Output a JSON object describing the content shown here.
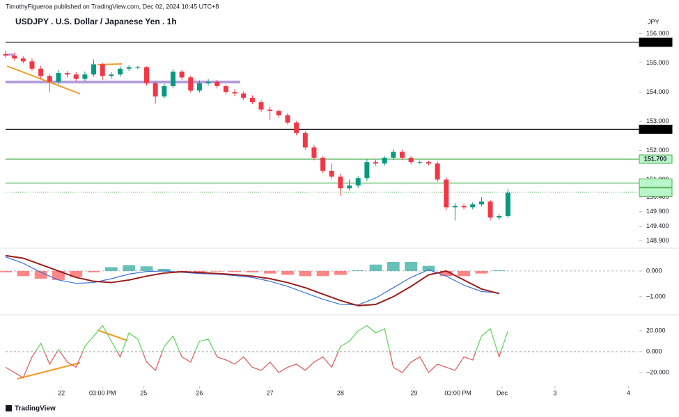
{
  "header": {
    "publisher": "TimothyFigueroa published on TradingView.com, Dec 02, 2024 10:45 UTC+8",
    "symbol_title": "USDJPY . U.S. Dollar / Japanese Yen . 1h",
    "currency": "JPY",
    "brand": "TradingView"
  },
  "chart_data": [
    {
      "type": "candlestick",
      "up_color": "#089981",
      "down_color": "#f23645",
      "xlim": [
        0,
        215
      ],
      "xticks": [
        {
          "value": 19,
          "label": "22"
        },
        {
          "value": 33,
          "label": "03:00 PM"
        },
        {
          "value": 47,
          "label": "25"
        },
        {
          "value": 66,
          "label": "26"
        },
        {
          "value": 90,
          "label": "27"
        },
        {
          "value": 114,
          "label": "28"
        },
        {
          "value": 139,
          "label": "29"
        },
        {
          "value": 154,
          "label": "03:00 PM"
        },
        {
          "value": 169,
          "label": "Dec"
        },
        {
          "value": 187,
          "label": "3"
        },
        {
          "value": 212,
          "label": "4"
        }
      ],
      "ylim": [
        148.7,
        156.2
      ],
      "yticks": [
        {
          "value": 156,
          "label": "156.000"
        },
        {
          "value": 155,
          "label": "155.000"
        },
        {
          "value": 154,
          "label": "154.000"
        },
        {
          "value": 153,
          "label": "153.000"
        },
        {
          "value": 152,
          "label": "152.000"
        },
        {
          "value": 151,
          "label": "151.000"
        },
        {
          "value": 150.4,
          "label": "150.400"
        },
        {
          "value": 149.9,
          "label": "149.900"
        },
        {
          "value": 149.4,
          "label": "149.400"
        },
        {
          "value": 148.9,
          "label": "148.900"
        }
      ],
      "levels": [
        {
          "value": 155.704,
          "color": "#000000",
          "fill": "#000000",
          "text_color": "#ffffff",
          "style": "solid"
        },
        {
          "value": 152.718,
          "color": "#000000",
          "fill": "#000000",
          "text_color": "#ffffff",
          "style": "solid"
        },
        {
          "value": 151.7,
          "label": "151.700",
          "color": "#4caf50",
          "fill": "#b9f6ca",
          "text_color": "#000000",
          "style": "solid"
        },
        {
          "value": 150.883,
          "color": "#4caf50",
          "fill": "#b9f6ca",
          "text_color": "#000000",
          "style": "solid"
        },
        {
          "value": 150.572,
          "color": "#4caf50",
          "fill": "#b9f6ca",
          "text_color": "#000000",
          "style": "dotted"
        }
      ],
      "x": [
        0,
        3,
        6,
        9,
        12,
        15,
        18,
        21,
        24,
        27,
        30,
        33,
        36,
        39,
        42,
        45,
        48,
        51,
        54,
        57,
        60,
        63,
        66,
        69,
        72,
        75,
        78,
        81,
        84,
        87,
        90,
        93,
        96,
        99,
        102,
        105,
        108,
        111,
        114,
        117,
        120,
        123,
        126,
        129,
        132,
        135,
        138,
        141,
        144,
        147,
        150,
        153,
        156,
        159,
        162,
        165,
        168,
        171
      ],
      "open": [
        155.3,
        155.25,
        155.15,
        155.05,
        154.8,
        154.55,
        154.35,
        154.65,
        154.6,
        154.45,
        154.6,
        154.95,
        154.55,
        154.6,
        154.8,
        154.85,
        154.85,
        154.3,
        153.85,
        154.2,
        154.7,
        154.5,
        154.05,
        154.3,
        154.35,
        154.2,
        154.0,
        153.95,
        153.8,
        153.65,
        153.4,
        153.35,
        153.2,
        152.95,
        152.6,
        152.1,
        151.75,
        151.3,
        151.1,
        150.7,
        150.8,
        151.05,
        151.6,
        151.55,
        151.75,
        151.95,
        151.75,
        151.6,
        151.6,
        151.55,
        151.0,
        150.05,
        150.1,
        150.05,
        150.15,
        150.25,
        149.7,
        149.75
      ],
      "high": [
        155.42,
        155.35,
        155.22,
        155.15,
        154.9,
        154.62,
        154.75,
        154.72,
        154.68,
        154.7,
        155.12,
        155.0,
        154.68,
        154.88,
        154.92,
        154.9,
        154.88,
        154.38,
        154.28,
        154.8,
        154.76,
        154.56,
        154.4,
        154.44,
        154.42,
        154.26,
        154.1,
        154.02,
        153.88,
        153.72,
        153.5,
        153.4,
        153.28,
        153.0,
        152.66,
        152.18,
        151.8,
        151.55,
        151.2,
        151.0,
        151.12,
        151.7,
        151.68,
        151.8,
        152.05,
        152.02,
        151.8,
        151.66,
        151.64,
        151.62,
        151.08,
        150.2,
        150.18,
        150.22,
        150.4,
        150.3,
        149.82,
        150.68
      ],
      "low": [
        155.18,
        155.08,
        154.98,
        154.72,
        154.45,
        154.0,
        154.25,
        154.5,
        154.38,
        154.38,
        154.52,
        154.42,
        154.45,
        154.52,
        154.72,
        154.78,
        154.22,
        153.6,
        153.78,
        154.12,
        154.42,
        153.98,
        153.98,
        154.22,
        154.12,
        153.92,
        153.86,
        153.72,
        153.58,
        153.32,
        153.05,
        153.12,
        152.88,
        152.52,
        152.02,
        151.66,
        151.22,
        151.02,
        150.45,
        150.62,
        150.72,
        150.96,
        151.48,
        151.48,
        151.68,
        151.68,
        151.52,
        151.54,
        151.48,
        150.92,
        149.95,
        149.6,
        149.98,
        149.98,
        150.08,
        149.6,
        149.62,
        149.68
      ],
      "close": [
        155.25,
        155.15,
        155.05,
        154.8,
        154.55,
        154.35,
        154.65,
        154.6,
        154.45,
        154.6,
        154.95,
        154.55,
        154.6,
        154.8,
        154.85,
        154.85,
        154.3,
        153.85,
        154.2,
        154.7,
        154.5,
        154.05,
        154.3,
        154.35,
        154.2,
        154.0,
        153.95,
        153.8,
        153.65,
        153.4,
        153.35,
        153.2,
        152.95,
        152.6,
        152.1,
        151.75,
        151.3,
        151.1,
        150.7,
        150.8,
        151.05,
        151.6,
        151.55,
        151.75,
        151.95,
        151.75,
        151.6,
        151.6,
        151.55,
        151.0,
        150.05,
        150.1,
        150.05,
        150.15,
        150.25,
        149.7,
        149.75,
        150.55
      ]
    },
    {
      "type": "macd",
      "xlim": [
        0,
        215
      ],
      "ylim": [
        -1.68,
        0.81
      ],
      "yticks": [
        {
          "value": 0,
          "label": "0.000"
        },
        {
          "value": -1,
          "label": "−1.000"
        }
      ],
      "x": [
        0,
        6,
        12,
        18,
        24,
        30,
        36,
        42,
        48,
        54,
        60,
        66,
        72,
        78,
        84,
        90,
        96,
        102,
        108,
        114,
        120,
        126,
        132,
        138,
        144,
        150,
        156,
        162,
        168
      ],
      "histogram": {
        "up_color": "#26a69a",
        "down_color": "#ff5252",
        "values": [
          -0.05,
          -0.2,
          -0.3,
          -0.35,
          -0.23,
          -0.05,
          0.15,
          0.23,
          0.18,
          0.08,
          -0.02,
          -0.04,
          -0.02,
          -0.04,
          -0.05,
          -0.1,
          -0.15,
          -0.2,
          -0.2,
          -0.15,
          0.03,
          0.25,
          0.35,
          0.35,
          0.2,
          -0.2,
          -0.2,
          -0.1,
          0.03
        ]
      },
      "series": [
        {
          "color": "#3a6fd8",
          "values": [
            0.55,
            0.3,
            -0.05,
            -0.35,
            -0.48,
            -0.45,
            -0.3,
            -0.12,
            -0.02,
            0.0,
            -0.05,
            -0.1,
            -0.12,
            -0.18,
            -0.25,
            -0.4,
            -0.6,
            -0.85,
            -1.1,
            -1.3,
            -1.32,
            -1.05,
            -0.65,
            -0.25,
            0.05,
            -0.2,
            -0.55,
            -0.8,
            -0.85
          ]
        },
        {
          "color": "#9b1c1c",
          "values": [
            0.6,
            0.5,
            0.25,
            0.0,
            -0.25,
            -0.4,
            -0.45,
            -0.35,
            -0.2,
            -0.08,
            -0.03,
            -0.06,
            -0.1,
            -0.14,
            -0.2,
            -0.3,
            -0.45,
            -0.65,
            -0.9,
            -1.15,
            -1.35,
            -1.3,
            -1.0,
            -0.6,
            -0.15,
            0.0,
            -0.35,
            -0.7,
            -0.88
          ]
        }
      ]
    },
    {
      "type": "oscillator",
      "xlim": [
        0,
        215
      ],
      "ylim": [
        -32.7,
        34
      ],
      "yticks": [
        {
          "value": 20,
          "label": "20.000"
        },
        {
          "value": 0,
          "label": "0.000"
        },
        {
          "value": -20,
          "label": "−20.000"
        }
      ],
      "above_color": "#5ad45a",
      "below_color": "#e05555",
      "x": [
        0,
        3,
        6,
        9,
        12,
        15,
        18,
        21,
        24,
        27,
        30,
        33,
        36,
        39,
        42,
        45,
        48,
        51,
        54,
        57,
        60,
        63,
        66,
        69,
        72,
        75,
        78,
        81,
        84,
        87,
        90,
        93,
        96,
        99,
        102,
        105,
        108,
        111,
        114,
        117,
        120,
        123,
        126,
        129,
        132,
        135,
        138,
        141,
        144,
        147,
        150,
        153,
        156,
        159,
        162,
        165,
        168,
        171
      ],
      "values": [
        -15,
        -20,
        -25,
        -5,
        8,
        -12,
        2,
        -10,
        -15,
        5,
        15,
        25,
        10,
        -5,
        18,
        12,
        -10,
        -18,
        5,
        15,
        -5,
        -10,
        10,
        12,
        -5,
        -8,
        -12,
        -5,
        -15,
        -18,
        -10,
        -20,
        -15,
        -12,
        -18,
        -10,
        -5,
        -15,
        5,
        10,
        20,
        25,
        18,
        22,
        -15,
        -20,
        -10,
        -5,
        -20,
        -12,
        -15,
        -18,
        -5,
        -8,
        15,
        22,
        -5,
        20
      ]
    }
  ]
}
